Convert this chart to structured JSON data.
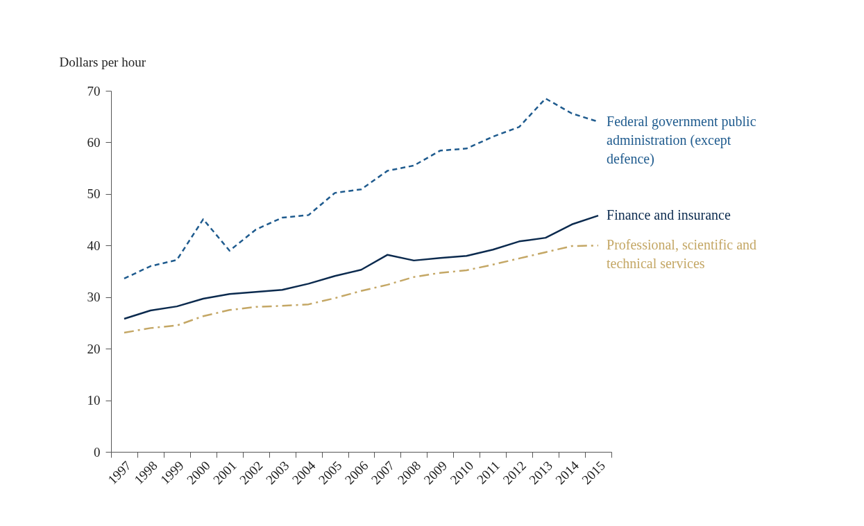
{
  "chart_data": {
    "type": "line",
    "ylabel": "Dollars per hour",
    "categories": [
      "1997",
      "1998",
      "1999",
      "2000",
      "2001",
      "2002",
      "2003",
      "2004",
      "2005",
      "2006",
      "2007",
      "2008",
      "2009",
      "2010",
      "2011",
      "2012",
      "2013",
      "2014",
      "2015"
    ],
    "ylim": [
      0,
      70
    ],
    "yticks": [
      0,
      10,
      20,
      30,
      40,
      50,
      60,
      70
    ],
    "grid": false,
    "legend": false,
    "series": [
      {
        "name": "Federal government public administration (except defence)",
        "color": "#1f5b8e",
        "line_style": "dashed",
        "values": [
          33.6,
          36.0,
          37.2,
          45.1,
          39.0,
          43.1,
          45.4,
          45.9,
          50.2,
          50.9,
          54.5,
          55.5,
          58.4,
          58.8,
          61.1,
          63.0,
          68.5,
          65.6,
          64.0
        ]
      },
      {
        "name": "Finance and insurance",
        "color": "#0b2a4e",
        "line_style": "solid",
        "values": [
          25.8,
          27.4,
          28.2,
          29.7,
          30.6,
          31.0,
          31.4,
          32.6,
          34.1,
          35.3,
          38.2,
          37.1,
          37.6,
          38.0,
          39.2,
          40.8,
          41.5,
          44.1,
          45.8
        ]
      },
      {
        "name": "Professional, scientific and technical services",
        "color": "#c4a765",
        "line_style": "dashdot",
        "values": [
          23.1,
          24.0,
          24.5,
          26.3,
          27.5,
          28.1,
          28.3,
          28.6,
          29.8,
          31.2,
          32.4,
          33.9,
          34.7,
          35.2,
          36.3,
          37.5,
          38.7,
          39.9,
          40.0
        ]
      }
    ]
  }
}
